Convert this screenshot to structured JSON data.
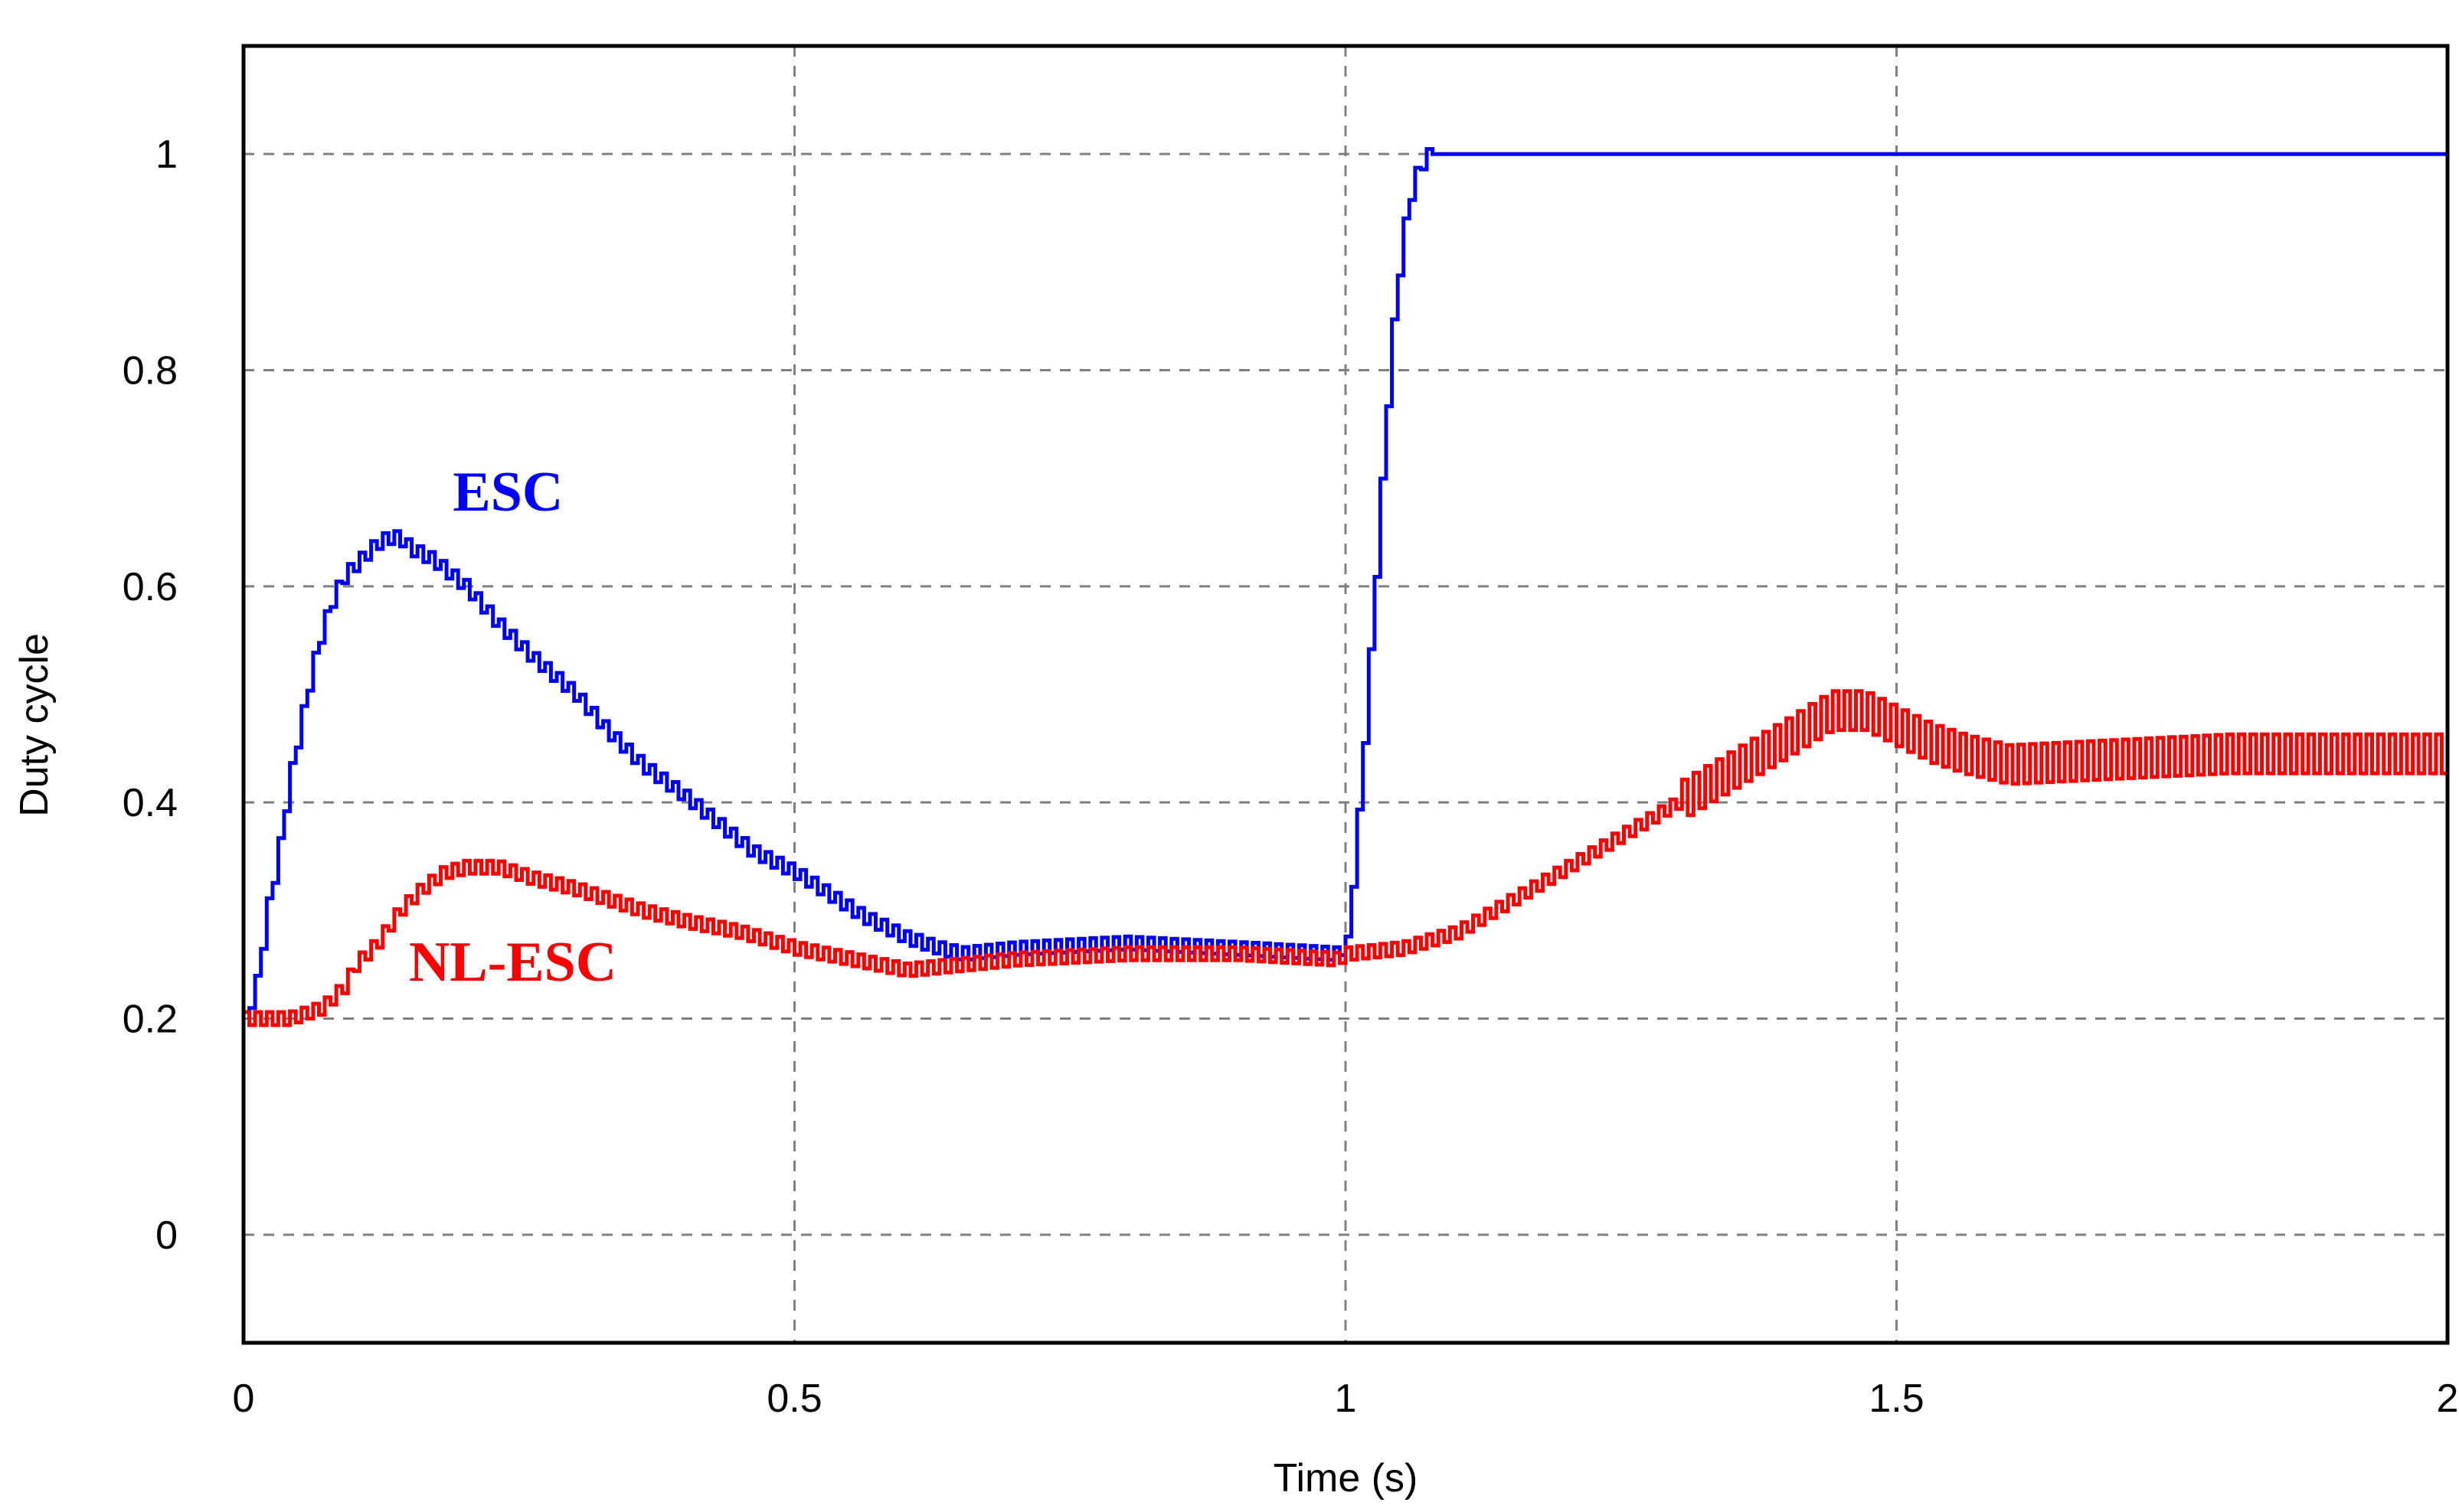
{
  "chart_data": {
    "type": "line",
    "title": "",
    "xlabel": "Time (s)",
    "ylabel": "Duty cycle",
    "xlim": [
      0,
      2
    ],
    "ylim": [
      -0.1,
      1.1
    ],
    "xticks": [
      0,
      0.5,
      1,
      1.5,
      2
    ],
    "xtick_labels": [
      "0",
      "0.5",
      "1",
      "1.5",
      "2"
    ],
    "yticks": [
      0,
      0.2,
      0.4,
      0.6,
      0.8,
      1
    ],
    "ytick_labels": [
      "0",
      "0.2",
      "0.4",
      "0.6",
      "0.8",
      "1"
    ],
    "grid": true,
    "legend": "none",
    "colors": {
      "ESC": "#0000ff",
      "NL-ESC": "#ff0000",
      "grid": "#808080",
      "axes": "#000000"
    },
    "annotations": [
      {
        "text": "ESC",
        "x": 0.19,
        "y": 0.67,
        "color": "#0000ff"
      },
      {
        "text": "NL-ESC",
        "x": 0.15,
        "y": 0.235,
        "color": "#ff0000"
      }
    ],
    "series": [
      {
        "name": "ESC",
        "x": [
          0,
          0.01,
          0.02,
          0.03,
          0.04,
          0.05,
          0.06,
          0.07,
          0.08,
          0.09,
          0.1,
          0.11,
          0.12,
          0.13,
          0.14,
          0.15,
          0.17,
          0.2,
          0.23,
          0.26,
          0.3,
          0.33,
          0.36,
          0.4,
          0.43,
          0.46,
          0.5,
          0.53,
          0.56,
          0.6,
          0.63,
          0.65,
          0.7,
          0.8,
          0.9,
          0.99,
          1.0,
          1.01,
          1.02,
          1.03,
          1.04,
          1.05,
          1.06,
          1.07,
          1.075,
          1.1,
          1.5,
          2.0
        ],
        "y": [
          0.2,
          0.23,
          0.3,
          0.35,
          0.42,
          0.47,
          0.52,
          0.56,
          0.59,
          0.61,
          0.62,
          0.63,
          0.64,
          0.645,
          0.645,
          0.635,
          0.625,
          0.6,
          0.565,
          0.535,
          0.5,
          0.465,
          0.435,
          0.405,
          0.38,
          0.355,
          0.335,
          0.315,
          0.295,
          0.275,
          0.265,
          0.26,
          0.265,
          0.27,
          0.265,
          0.26,
          0.27,
          0.38,
          0.52,
          0.67,
          0.82,
          0.92,
          0.975,
          0.995,
          1.0,
          1.0,
          1.0,
          1.0
        ]
      },
      {
        "name": "NL-ESC",
        "x": [
          0,
          0.04,
          0.07,
          0.09,
          0.1,
          0.12,
          0.14,
          0.16,
          0.18,
          0.2,
          0.23,
          0.26,
          0.3,
          0.33,
          0.36,
          0.4,
          0.45,
          0.5,
          0.55,
          0.6,
          0.65,
          0.7,
          0.8,
          0.9,
          0.99,
          1.0,
          1.05,
          1.1,
          1.15,
          1.2,
          1.25,
          1.3,
          1.35,
          1.4,
          1.44,
          1.47,
          1.5,
          1.53,
          1.56,
          1.6,
          1.7,
          1.8,
          1.9,
          2.0
        ],
        "y": [
          0.2,
          0.2,
          0.21,
          0.23,
          0.25,
          0.27,
          0.3,
          0.32,
          0.335,
          0.34,
          0.34,
          0.33,
          0.32,
          0.31,
          0.3,
          0.29,
          0.28,
          0.265,
          0.255,
          0.245,
          0.25,
          0.255,
          0.26,
          0.26,
          0.255,
          0.26,
          0.265,
          0.28,
          0.31,
          0.34,
          0.37,
          0.4,
          0.43,
          0.46,
          0.485,
          0.485,
          0.47,
          0.455,
          0.445,
          0.435,
          0.44,
          0.445,
          0.445,
          0.445
        ]
      }
    ]
  }
}
